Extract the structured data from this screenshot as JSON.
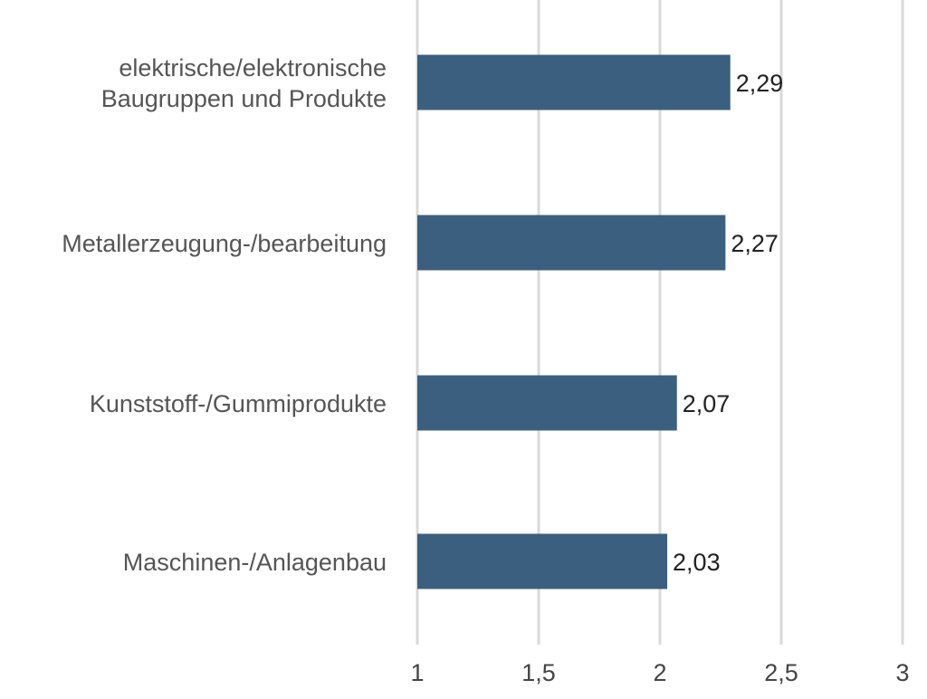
{
  "chart_data": {
    "type": "bar",
    "orientation": "horizontal",
    "categories": [
      [
        "elektrische/elektronische",
        "Baugruppen und Produkte"
      ],
      [
        "Metallerzeugung-/bearbeitung"
      ],
      [
        "Kunststoff-/Gummiprodukte"
      ],
      [
        "Maschinen-/Anlagenbau"
      ]
    ],
    "values": [
      2.29,
      2.27,
      2.07,
      2.03
    ],
    "value_labels": [
      "2,29",
      "2,27",
      "2,07",
      "2,03"
    ],
    "x_ticks": [
      1,
      1.5,
      2,
      2.5,
      3
    ],
    "x_tick_labels": [
      "1",
      "1,5",
      "2",
      "2,5",
      "3"
    ],
    "xlim": [
      1,
      3
    ],
    "grid": true,
    "bar_color": "#3b5f7f",
    "grid_color": "#d9d9d9",
    "title": "",
    "xlabel": "",
    "ylabel": ""
  }
}
